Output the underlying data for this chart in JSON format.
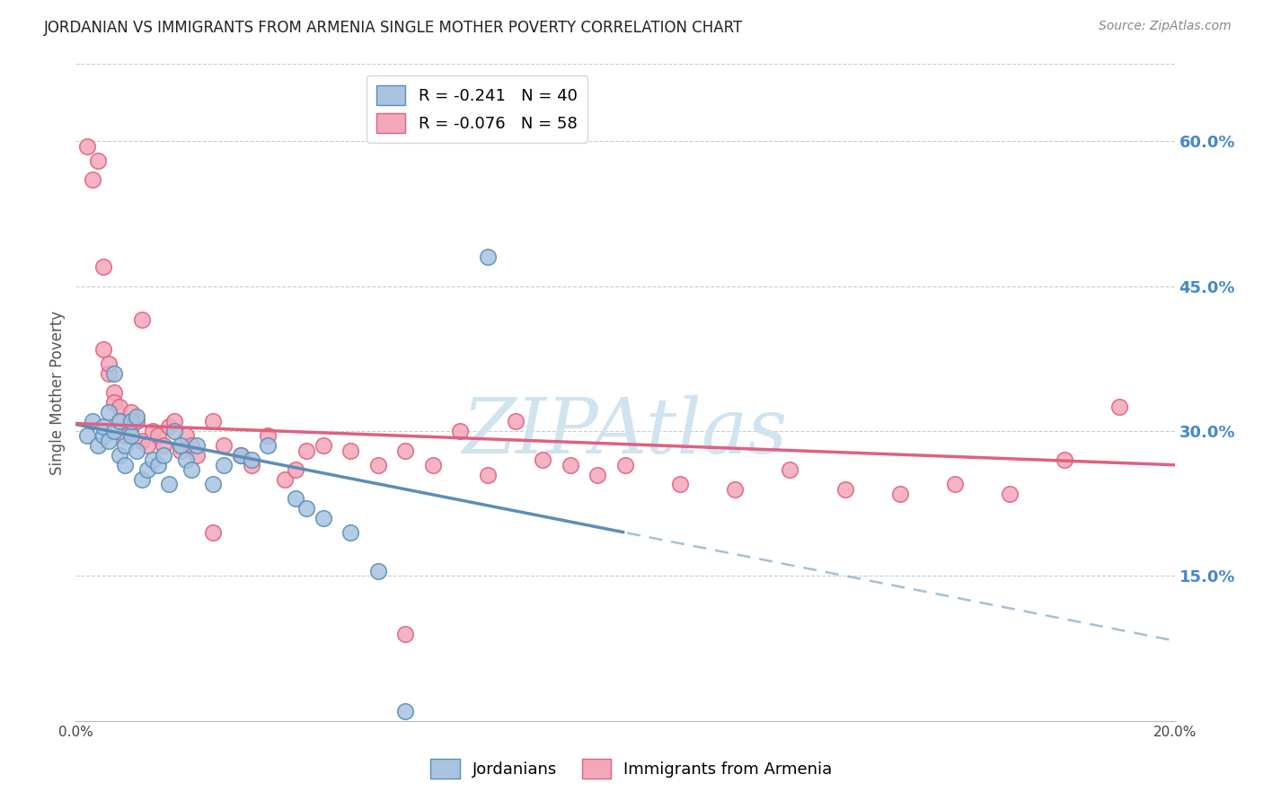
{
  "title": "JORDANIAN VS IMMIGRANTS FROM ARMENIA SINGLE MOTHER POVERTY CORRELATION CHART",
  "source": "Source: ZipAtlas.com",
  "ylabel": "Single Mother Poverty",
  "right_ytick_labels": [
    "60.0%",
    "45.0%",
    "30.0%",
    "15.0%"
  ],
  "right_ytick_values": [
    0.6,
    0.45,
    0.3,
    0.15
  ],
  "xlim": [
    0.0,
    0.2
  ],
  "ylim": [
    0.0,
    0.68
  ],
  "jordanians_R": -0.241,
  "jordanians_N": 40,
  "armenia_R": -0.076,
  "armenia_N": 58,
  "jordanians_color": "#A8C4E0",
  "armenia_color": "#F4A7B9",
  "jordanians_edge_color": "#5B8DB8",
  "armenia_edge_color": "#E06080",
  "jordanians_line_color": "#5B8DB8",
  "armenia_line_color": "#E06080",
  "watermark": "ZIPAtlas",
  "watermark_color": "#D0E4F0",
  "background_color": "#FFFFFF",
  "grid_color": "#CCCCCC",
  "right_axis_color": "#4488CC",
  "title_fontsize": 12,
  "jordanians_x": [
    0.002,
    0.003,
    0.004,
    0.005,
    0.005,
    0.006,
    0.006,
    0.007,
    0.007,
    0.008,
    0.008,
    0.009,
    0.009,
    0.01,
    0.01,
    0.011,
    0.011,
    0.012,
    0.013,
    0.014,
    0.015,
    0.016,
    0.017,
    0.018,
    0.019,
    0.02,
    0.021,
    0.022,
    0.025,
    0.027,
    0.03,
    0.032,
    0.035,
    0.04,
    0.042,
    0.045,
    0.05,
    0.055,
    0.06,
    0.075
  ],
  "jordanians_y": [
    0.295,
    0.31,
    0.285,
    0.295,
    0.305,
    0.29,
    0.32,
    0.36,
    0.3,
    0.275,
    0.31,
    0.265,
    0.285,
    0.295,
    0.31,
    0.28,
    0.315,
    0.25,
    0.26,
    0.27,
    0.265,
    0.275,
    0.245,
    0.3,
    0.285,
    0.27,
    0.26,
    0.285,
    0.245,
    0.265,
    0.275,
    0.27,
    0.285,
    0.23,
    0.22,
    0.21,
    0.195,
    0.155,
    0.01,
    0.48
  ],
  "armenia_x": [
    0.002,
    0.003,
    0.004,
    0.005,
    0.005,
    0.006,
    0.006,
    0.007,
    0.007,
    0.008,
    0.008,
    0.009,
    0.01,
    0.01,
    0.011,
    0.012,
    0.013,
    0.014,
    0.015,
    0.016,
    0.017,
    0.018,
    0.019,
    0.02,
    0.021,
    0.022,
    0.025,
    0.027,
    0.03,
    0.032,
    0.035,
    0.038,
    0.04,
    0.042,
    0.045,
    0.05,
    0.055,
    0.06,
    0.065,
    0.07,
    0.075,
    0.08,
    0.085,
    0.09,
    0.095,
    0.1,
    0.11,
    0.12,
    0.13,
    0.14,
    0.15,
    0.16,
    0.17,
    0.18,
    0.19,
    0.012,
    0.025,
    0.06
  ],
  "armenia_y": [
    0.595,
    0.56,
    0.58,
    0.47,
    0.385,
    0.36,
    0.37,
    0.34,
    0.33,
    0.325,
    0.31,
    0.295,
    0.305,
    0.32,
    0.31,
    0.29,
    0.285,
    0.3,
    0.295,
    0.285,
    0.305,
    0.31,
    0.28,
    0.295,
    0.285,
    0.275,
    0.31,
    0.285,
    0.275,
    0.265,
    0.295,
    0.25,
    0.26,
    0.28,
    0.285,
    0.28,
    0.265,
    0.28,
    0.265,
    0.3,
    0.255,
    0.31,
    0.27,
    0.265,
    0.255,
    0.265,
    0.245,
    0.24,
    0.26,
    0.24,
    0.235,
    0.245,
    0.235,
    0.27,
    0.325,
    0.415,
    0.195,
    0.09
  ]
}
